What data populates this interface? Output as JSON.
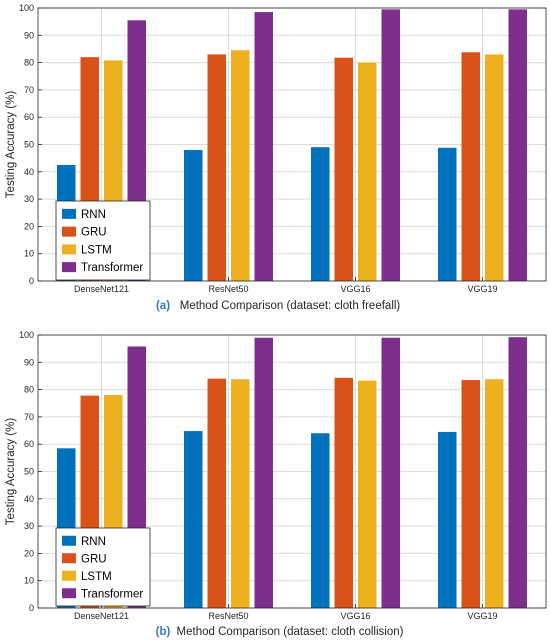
{
  "chart_data": [
    {
      "type": "bar",
      "panel_label": "(a)",
      "caption": "Method Comparison (dataset: cloth freefall)",
      "xlabel": "",
      "ylabel": "Testing Accuracy (%)",
      "ylim": [
        0,
        100
      ],
      "yticks": [
        0,
        10,
        20,
        30,
        40,
        50,
        60,
        70,
        80,
        90,
        100
      ],
      "grid": true,
      "legend_position": "bottom-left",
      "categories": [
        "DenseNet121",
        "ResNet50",
        "VGG16",
        "VGG19"
      ],
      "series": [
        {
          "name": "RNN",
          "color": "#0072bd",
          "values": [
            42.5,
            48,
            49,
            48.8
          ]
        },
        {
          "name": "GRU",
          "color": "#d95319",
          "values": [
            82,
            83,
            81.8,
            83.8
          ]
        },
        {
          "name": "LSTM",
          "color": "#edb120",
          "values": [
            80.8,
            84.5,
            80,
            83
          ]
        },
        {
          "name": "Transformer",
          "color": "#7e2f8e",
          "values": [
            95.5,
            98.5,
            99.5,
            99.5
          ]
        }
      ]
    },
    {
      "type": "bar",
      "panel_label": "(b)",
      "caption": "Method Comparison (dataset: cloth collision)",
      "xlabel": "",
      "ylabel": "Testing Accuracy (%)",
      "ylim": [
        0,
        100
      ],
      "yticks": [
        0,
        10,
        20,
        30,
        40,
        50,
        60,
        70,
        80,
        90,
        100
      ],
      "grid": true,
      "legend_position": "bottom-left",
      "categories": [
        "DenseNet121",
        "ResNet50",
        "VGG16",
        "VGG19"
      ],
      "series": [
        {
          "name": "RNN",
          "color": "#0072bd",
          "values": [
            58.5,
            64.8,
            64,
            64.5
          ]
        },
        {
          "name": "GRU",
          "color": "#d95319",
          "values": [
            77.8,
            84,
            84.3,
            83.5
          ]
        },
        {
          "name": "LSTM",
          "color": "#edb120",
          "values": [
            78,
            83.8,
            83.3,
            83.8
          ]
        },
        {
          "name": "Transformer",
          "color": "#7e2f8e",
          "values": [
            95.8,
            99,
            99,
            99.2
          ]
        }
      ]
    }
  ]
}
